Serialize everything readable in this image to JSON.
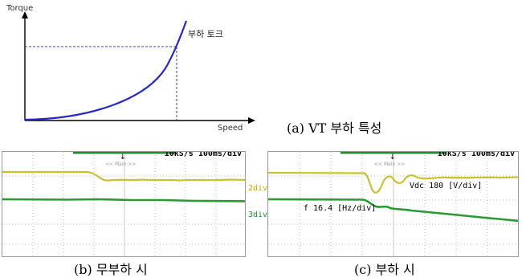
{
  "vt_chart": {
    "y_axis_label": "Torque",
    "x_axis_label": "Speed",
    "curve_label": "부하 토크",
    "curve_color": "#2a28c8"
  },
  "captions": {
    "a": "(a) VT  부하  특성",
    "b": "(b)  무부하  시",
    "c": "(c)  부하  시"
  },
  "scope_b": {
    "header": "10kS/s  100ms/div",
    "trigger_tag": "<< Main >>"
  },
  "scope_c": {
    "header": "10kS/s  100ms/div",
    "trigger_tag": "<< Main >>",
    "ch2_marker": "2div",
    "ch3_marker": "3div",
    "vdc_label": "Vdc 180 [V/div]",
    "f_label": "f  16.4 [Hz/div]"
  },
  "colors": {
    "vdc_trace": "#c9c22e",
    "f_trace": "#2a9a35",
    "header_line": "#1f8f2f"
  }
}
